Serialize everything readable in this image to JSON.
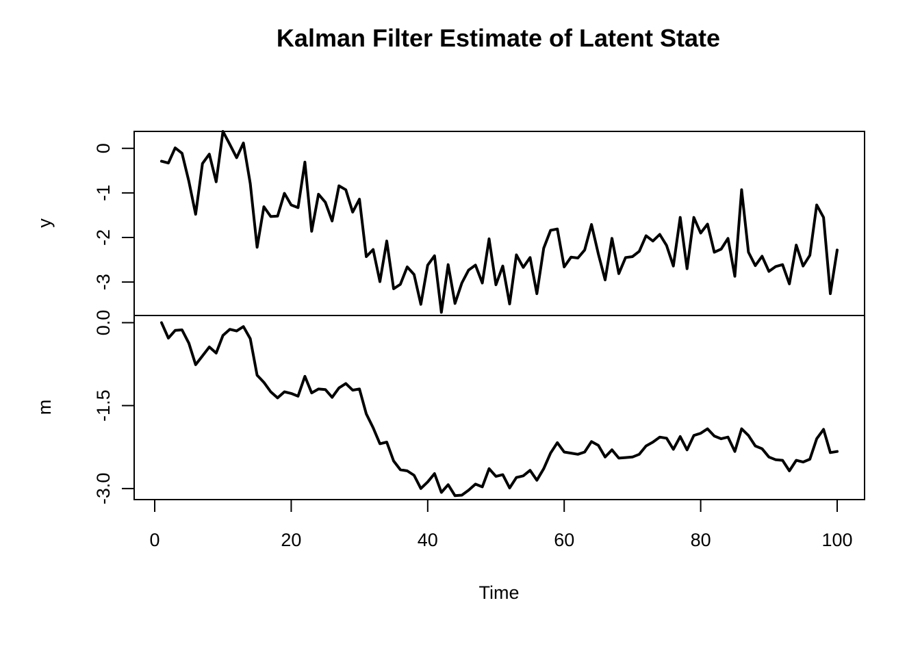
{
  "chart_data": {
    "type": "line",
    "title": "Kalman Filter Estimate of Latent State",
    "xlabel": "Time",
    "x_ticks": [
      "0",
      "20",
      "40",
      "60",
      "80",
      "100"
    ],
    "x_tick_values": [
      0,
      20,
      40,
      60,
      80,
      100
    ],
    "xlim": [
      1,
      100
    ],
    "grid": false,
    "panels": [
      {
        "name": "y",
        "ylabel": "y",
        "y_ticks": [
          "0",
          "-1",
          "-2",
          "-3"
        ],
        "y_tick_values": [
          0,
          -1,
          -2,
          -3
        ],
        "ylim": [
          -3.75,
          0.38
        ],
        "color": "#000000",
        "x": [
          1,
          2,
          3,
          4,
          5,
          6,
          7,
          8,
          9,
          10,
          11,
          12,
          13,
          14,
          15,
          16,
          17,
          18,
          19,
          20,
          21,
          22,
          23,
          24,
          25,
          26,
          27,
          28,
          29,
          30,
          31,
          32,
          33,
          34,
          35,
          36,
          37,
          38,
          39,
          40,
          41,
          42,
          43,
          44,
          45,
          46,
          47,
          48,
          49,
          50,
          51,
          52,
          53,
          54,
          55,
          56,
          57,
          58,
          59,
          60,
          61,
          62,
          63,
          64,
          65,
          66,
          67,
          68,
          69,
          70,
          71,
          72,
          73,
          74,
          75,
          76,
          77,
          78,
          79,
          80,
          81,
          82,
          83,
          84,
          85,
          86,
          87,
          88,
          89,
          90,
          91,
          92,
          93,
          94,
          95,
          96,
          97,
          98,
          99,
          100
        ],
        "values": [
          -0.29,
          -0.33,
          0.01,
          -0.11,
          -0.74,
          -1.48,
          -0.34,
          -0.13,
          -0.75,
          0.38,
          0.09,
          -0.21,
          0.12,
          -0.79,
          -2.22,
          -1.31,
          -1.53,
          -1.52,
          -1.01,
          -1.27,
          -1.33,
          -0.31,
          -1.86,
          -1.03,
          -1.21,
          -1.63,
          -0.84,
          -0.93,
          -1.43,
          -1.14,
          -2.43,
          -2.27,
          -2.99,
          -2.08,
          -3.15,
          -3.05,
          -2.66,
          -2.83,
          -3.5,
          -2.62,
          -2.41,
          -3.68,
          -2.61,
          -3.48,
          -3.02,
          -2.73,
          -2.62,
          -3.02,
          -2.03,
          -3.06,
          -2.64,
          -3.49,
          -2.39,
          -2.67,
          -2.45,
          -3.26,
          -2.24,
          -1.84,
          -1.81,
          -2.66,
          -2.44,
          -2.46,
          -2.28,
          -1.71,
          -2.37,
          -2.95,
          -2.02,
          -2.81,
          -2.45,
          -2.43,
          -2.31,
          -1.96,
          -2.08,
          -1.93,
          -2.18,
          -2.64,
          -1.55,
          -2.7,
          -1.55,
          -1.9,
          -1.7,
          -2.33,
          -2.26,
          -2.02,
          -2.87,
          -0.93,
          -2.33,
          -2.63,
          -2.42,
          -2.76,
          -2.65,
          -2.61,
          -3.04,
          -2.17,
          -2.64,
          -2.4,
          -1.27,
          -1.55,
          -3.26,
          -2.28
        ]
      },
      {
        "name": "m",
        "ylabel": "m",
        "y_ticks": [
          "0.0",
          "-1.5",
          "-3.0"
        ],
        "y_tick_values": [
          0.0,
          -1.5,
          -3.0
        ],
        "ylim": [
          -3.2,
          0.13
        ],
        "color": "#000000",
        "x": [
          1,
          2,
          3,
          4,
          5,
          6,
          7,
          8,
          9,
          10,
          11,
          12,
          13,
          14,
          15,
          16,
          17,
          18,
          19,
          20,
          21,
          22,
          23,
          24,
          25,
          26,
          27,
          28,
          29,
          30,
          31,
          32,
          33,
          34,
          35,
          36,
          37,
          38,
          39,
          40,
          41,
          42,
          43,
          44,
          45,
          46,
          47,
          48,
          49,
          50,
          51,
          52,
          53,
          54,
          55,
          56,
          57,
          58,
          59,
          60,
          61,
          62,
          63,
          64,
          65,
          66,
          67,
          68,
          69,
          70,
          71,
          72,
          73,
          74,
          75,
          76,
          77,
          78,
          79,
          80,
          81,
          82,
          83,
          84,
          85,
          86,
          87,
          88,
          89,
          90,
          91,
          92,
          93,
          94,
          95,
          96,
          97,
          98,
          99,
          100
        ],
        "values": [
          0.0,
          -0.28,
          -0.14,
          -0.13,
          -0.37,
          -0.76,
          -0.6,
          -0.44,
          -0.55,
          -0.23,
          -0.12,
          -0.15,
          -0.07,
          -0.29,
          -0.95,
          -1.08,
          -1.25,
          -1.36,
          -1.25,
          -1.28,
          -1.33,
          -0.97,
          -1.27,
          -1.2,
          -1.21,
          -1.35,
          -1.18,
          -1.1,
          -1.22,
          -1.2,
          -1.65,
          -1.9,
          -2.19,
          -2.16,
          -2.5,
          -2.66,
          -2.68,
          -2.76,
          -3.0,
          -2.88,
          -2.73,
          -3.07,
          -2.93,
          -3.13,
          -3.12,
          -3.03,
          -2.92,
          -2.97,
          -2.64,
          -2.78,
          -2.75,
          -2.99,
          -2.8,
          -2.77,
          -2.67,
          -2.85,
          -2.64,
          -2.36,
          -2.17,
          -2.34,
          -2.36,
          -2.38,
          -2.34,
          -2.15,
          -2.22,
          -2.43,
          -2.3,
          -2.45,
          -2.44,
          -2.43,
          -2.38,
          -2.23,
          -2.16,
          -2.07,
          -2.09,
          -2.29,
          -2.06,
          -2.3,
          -2.04,
          -2.0,
          -1.92,
          -2.05,
          -2.1,
          -2.07,
          -2.33,
          -1.92,
          -2.04,
          -2.23,
          -2.28,
          -2.43,
          -2.48,
          -2.49,
          -2.68,
          -2.49,
          -2.52,
          -2.47,
          -2.1,
          -1.93,
          -2.35,
          -2.33
        ]
      }
    ]
  }
}
